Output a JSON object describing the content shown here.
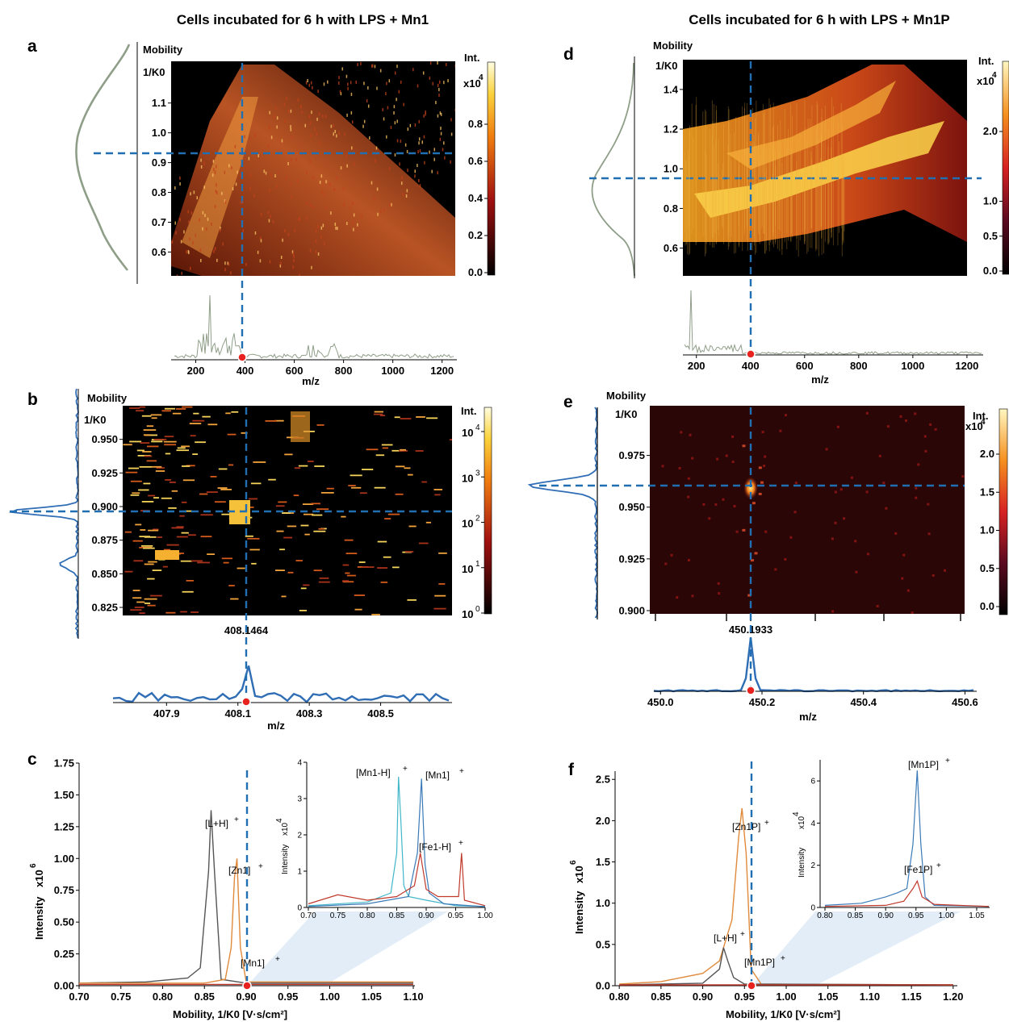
{
  "titles": {
    "left": "Cells incubated for 6 h with LPS + Mn1",
    "right": "Cells incubated for 6 h with LPS + Mn1P"
  },
  "colors": {
    "guide": "#1f6fb2",
    "marker": "#e8231f",
    "spectrum_grey": "#8f9e88",
    "peak_blue": "#2f6db5",
    "trace_black": "#555555",
    "trace_orange": "#e08a3c",
    "trace_red": "#c0392b",
    "trace_teal": "#3fb6c8",
    "trace_blue": "#3a7ab8",
    "band": "#d6e6f5"
  },
  "chart_data": [
    {
      "panel": "a",
      "type": "heatmap",
      "ylabel": "Mobility",
      "ylabel2": "1/K0",
      "xlabel": "m/z",
      "y_ticks": [
        "0.6",
        "0.7",
        "0.8",
        "0.9",
        "1.0",
        "1.1"
      ],
      "ylim": [
        0.52,
        1.24
      ],
      "x_ticks": [
        "200",
        "400",
        "600",
        "800",
        "1000",
        "1200"
      ],
      "xlim": [
        100,
        1260
      ],
      "colorbar": {
        "label": "Int.",
        "exponent": "4",
        "multiplier": "x10",
        "ticks": [
          "0.0",
          "0.2",
          "0.4",
          "0.6",
          "0.8"
        ]
      },
      "crosshair": {
        "x": 390,
        "y": 0.91
      }
    },
    {
      "panel": "b",
      "type": "heatmap",
      "ylabel": "Mobility",
      "ylabel2": "1/K0",
      "xlabel": "m/z",
      "y_ticks": [
        "0.825",
        "0.850",
        "0.875",
        "0.900",
        "0.925",
        "0.950"
      ],
      "ylim": [
        0.819,
        0.975
      ],
      "x_ticks": [
        "407.9",
        "408.1",
        "408.3",
        "408.5"
      ],
      "xlim": [
        407.75,
        408.7
      ],
      "peak_label": "408.1464",
      "colorbar": {
        "label": "Int.",
        "ticks": [
          "10",
          "10",
          "10",
          "10",
          "10"
        ],
        "exponents": [
          "0",
          "1",
          "2",
          "3",
          "4"
        ]
      },
      "crosshair": {
        "x": 408.1464,
        "y": 0.9
      }
    },
    {
      "panel": "c",
      "type": "line",
      "xlabel": "Mobility, 1/K0 [V·s/cm²]",
      "ylabel": "Intensity",
      "yunit": "x10",
      "yexp": "6",
      "xlim": [
        0.7,
        1.1
      ],
      "ylim": [
        0,
        1.75
      ],
      "x_ticks": [
        "0.70",
        "0.75",
        "0.80",
        "0.85",
        "0.90",
        "0.95",
        "1.00",
        "1.05",
        "1.10"
      ],
      "y_ticks": [
        "0.00",
        "0.25",
        "0.50",
        "0.75",
        "1.00",
        "1.25",
        "1.50",
        "1.75"
      ],
      "annotations": [
        "[L+H]",
        "[Zn1]",
        "[Mn1]"
      ],
      "series": [
        {
          "x": [
            0.7,
            0.78,
            0.83,
            0.845,
            0.855,
            0.858,
            0.862,
            0.87,
            0.9,
            1.1
          ],
          "y": [
            0.02,
            0.03,
            0.06,
            0.14,
            0.9,
            1.38,
            0.9,
            0.05,
            0.02,
            0.02
          ]
        },
        {
          "x": [
            0.7,
            0.85,
            0.875,
            0.882,
            0.886,
            0.889,
            0.893,
            0.9,
            1.1
          ],
          "y": [
            0.02,
            0.02,
            0.05,
            0.3,
            0.85,
            1.0,
            0.3,
            0.03,
            0.03
          ]
        },
        {
          "x": [
            0.7,
            1.1
          ],
          "y": [
            0.01,
            0.01
          ]
        }
      ],
      "inset": {
        "xlim": [
          0.7,
          1.0
        ],
        "ylim": [
          0,
          4
        ],
        "x_ticks": [
          "0.70",
          "0.75",
          "0.80",
          "0.85",
          "0.90",
          "0.95",
          "1.00"
        ],
        "y_ticks": [
          "0",
          "1",
          "2",
          "3",
          "4"
        ],
        "ylabel": "Intensity",
        "yunit": "x10",
        "yexp": "4",
        "annotations": [
          "[Mn1-H]",
          "[Mn1]",
          "[Fe1-H]"
        ],
        "series": [
          {
            "x": [
              0.7,
              0.8,
              0.84,
              0.85,
              0.853,
              0.857,
              0.862,
              0.87,
              0.9,
              0.95,
              1.0
            ],
            "y": [
              0.05,
              0.15,
              0.4,
              1.5,
              3.6,
              2.4,
              0.6,
              0.3,
              0.2,
              0.05,
              0.03
            ]
          },
          {
            "x": [
              0.7,
              0.8,
              0.87,
              0.885,
              0.892,
              0.898,
              0.905,
              0.93,
              1.0
            ],
            "y": [
              0.03,
              0.1,
              0.3,
              1.5,
              3.55,
              1.2,
              0.4,
              0.1,
              0.02
            ]
          },
          {
            "x": [
              0.7,
              0.75,
              0.8,
              0.85,
              0.88,
              0.89,
              0.9,
              0.92,
              0.955,
              0.96,
              0.965,
              1.0
            ],
            "y": [
              0.1,
              0.35,
              0.2,
              0.3,
              0.6,
              1.5,
              0.5,
              0.3,
              0.3,
              1.5,
              0.2,
              0.05
            ]
          }
        ]
      }
    },
    {
      "panel": "d",
      "type": "heatmap",
      "ylabel": "Mobility",
      "ylabel2": "1/K0",
      "xlabel": "m/z",
      "y_ticks": [
        "0.6",
        "0.8",
        "1.0",
        "1.2",
        "1.4"
      ],
      "ylim": [
        0.46,
        1.55
      ],
      "x_ticks": [
        "200",
        "400",
        "600",
        "800",
        "1000",
        "1200"
      ],
      "xlim": [
        180,
        1260
      ],
      "colorbar": {
        "label": "Int.",
        "exponent": "4",
        "multiplier": "x10",
        "ticks": [
          "0.0",
          "0.5",
          "1.0",
          "2.0"
        ]
      },
      "crosshair": {
        "x": 430,
        "y": 0.955
      }
    },
    {
      "panel": "e",
      "type": "heatmap",
      "ylabel": "Mobility",
      "ylabel2": "1/K0",
      "xlabel": "m/z",
      "y_ticks": [
        "0.900",
        "0.925",
        "0.950",
        "0.975"
      ],
      "ylim": [
        0.9,
        0.999
      ],
      "x_ticks": [
        "450.0",
        "450.2",
        "450.4",
        "450.6"
      ],
      "xlim": [
        449.99,
        450.62
      ],
      "peak_label": "450.1933",
      "colorbar": {
        "label": "Int.",
        "exponent": "4",
        "multiplier": "x10",
        "ticks": [
          "0.0",
          "0.5",
          "1.0",
          "1.5",
          "2.0"
        ]
      },
      "crosshair": {
        "x": 450.1933,
        "y": 0.96
      }
    },
    {
      "panel": "f",
      "type": "line",
      "xlabel": "Mobility, 1/K0 [V·s/cm²]",
      "ylabel": "Intensity",
      "yunit": "x10",
      "yexp": "6",
      "xlim": [
        0.795,
        1.205
      ],
      "ylim": [
        0,
        2.6
      ],
      "x_ticks": [
        "0.80",
        "0.85",
        "0.90",
        "0.95",
        "1.00",
        "1.05",
        "1.10",
        "1.15",
        "1.20"
      ],
      "y_ticks": [
        "0.0",
        "0.5",
        "1.0",
        "1.5",
        "2.0",
        "2.5"
      ],
      "annotations": [
        "[Zn1P]",
        "[L+H]",
        "[Mn1P]"
      ],
      "series": [
        {
          "x": [
            0.8,
            0.85,
            0.9,
            0.92,
            0.935,
            0.943,
            0.947,
            0.952,
            0.958,
            0.97,
            1.2
          ],
          "y": [
            0.02,
            0.05,
            0.15,
            0.3,
            0.8,
            1.8,
            2.15,
            1.6,
            0.2,
            0.02,
            0.01
          ]
        },
        {
          "x": [
            0.8,
            0.9,
            0.92,
            0.925,
            0.93,
            0.937,
            0.95,
            1.2
          ],
          "y": [
            0.01,
            0.03,
            0.2,
            0.46,
            0.3,
            0.1,
            0.02,
            0.01
          ]
        },
        {
          "x": [
            0.8,
            1.2
          ],
          "y": [
            0.01,
            0.01
          ]
        }
      ],
      "inset": {
        "xlim": [
          0.8,
          1.07
        ],
        "ylim": [
          0,
          7
        ],
        "x_ticks": [
          "0.80",
          "0.85",
          "0.90",
          "0.95",
          "1.00",
          "1.05"
        ],
        "y_ticks": [
          "0",
          "2",
          "4",
          "6"
        ],
        "ylabel": "Intensity",
        "yunit": "x10",
        "yexp": "4",
        "annotations": [
          "[Mn1P]",
          "[Fe1P]"
        ],
        "series": [
          {
            "x": [
              0.8,
              0.86,
              0.9,
              0.92,
              0.935,
              0.945,
              0.952,
              0.958,
              0.965,
              0.98,
              1.07
            ],
            "y": [
              0.1,
              0.2,
              0.5,
              0.7,
              0.9,
              3.0,
              6.5,
              3.0,
              0.5,
              0.1,
              0.05
            ]
          },
          {
            "x": [
              0.8,
              0.9,
              0.93,
              0.945,
              0.952,
              0.96,
              0.98,
              1.02,
              1.07
            ],
            "y": [
              0.05,
              0.1,
              0.3,
              0.9,
              1.25,
              0.5,
              0.15,
              0.1,
              0.05
            ]
          }
        ]
      }
    }
  ]
}
